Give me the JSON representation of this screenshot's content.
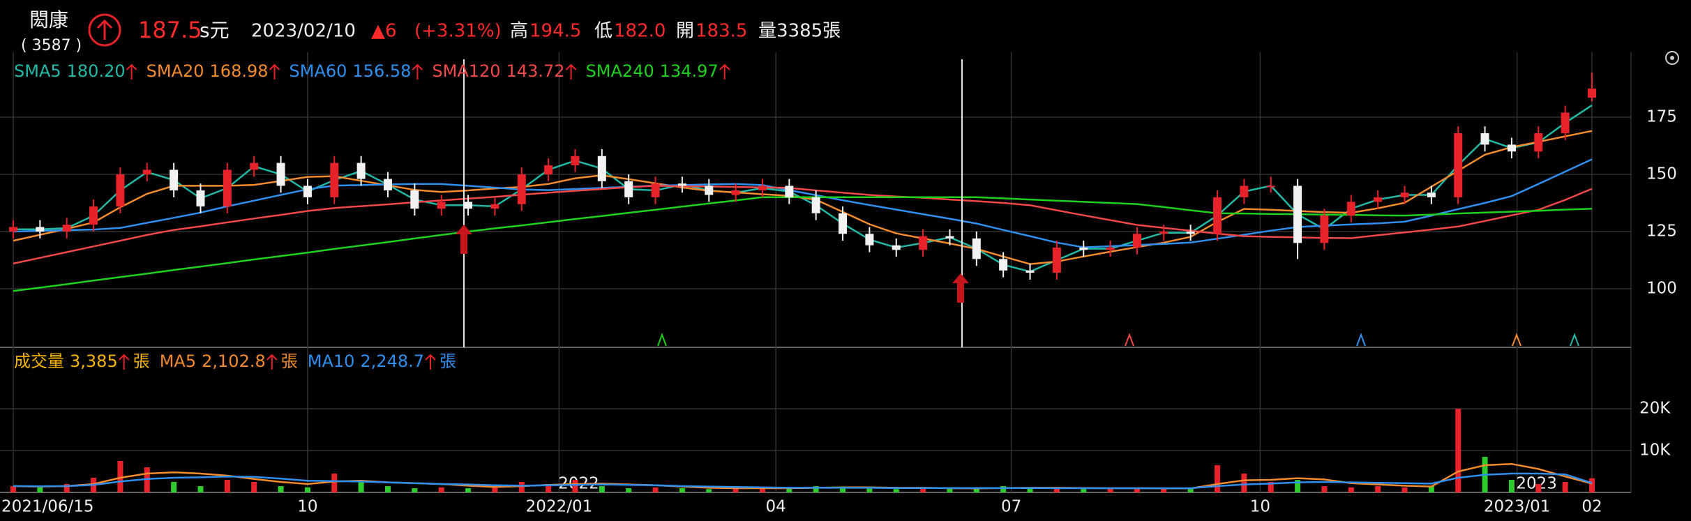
{
  "header": {
    "name": "閎康",
    "code": "( 3587 )",
    "price": "187.5",
    "currency": "s元",
    "date": "2023/02/10",
    "change": "▲6",
    "change_pct": "(+3.31%)",
    "high_label": "高",
    "high": "194.5",
    "low_label": "低",
    "low": "182.0",
    "open_label": "開",
    "open": "183.5",
    "volume": "量3385張"
  },
  "chart_data": {
    "type": "candlestick",
    "ylim": [
      74.4,
      200.3
    ],
    "yticks": [
      100,
      125,
      150,
      175
    ],
    "xticks": [
      {
        "value": 0,
        "label": "2021/06/15"
      },
      {
        "value": 11,
        "label": "10"
      },
      {
        "value": 20.4,
        "label": "2022/01"
      },
      {
        "value": 28.5,
        "label": "04"
      },
      {
        "value": 37.3,
        "label": "07"
      },
      {
        "value": 46.6,
        "label": "10"
      },
      {
        "value": 56.2,
        "label": "2023/01"
      },
      {
        "value": 59,
        "label": "02"
      }
    ],
    "year_marks": [
      {
        "value": 20.4,
        "label": "2022"
      },
      {
        "value": 56.2,
        "label": "2023"
      }
    ],
    "up_color": "#e8222a",
    "down_color": "#f2f2f2",
    "candles": {
      "open": [
        125,
        127,
        125,
        128,
        136,
        150,
        152,
        143,
        136,
        152,
        155,
        145,
        140,
        155,
        148,
        143,
        135,
        138,
        135,
        137,
        150,
        154,
        158,
        147,
        140,
        146,
        145,
        141,
        143,
        145,
        140,
        133,
        124,
        119,
        117,
        123,
        122,
        113,
        108,
        107,
        118,
        117,
        118,
        124,
        125,
        124,
        140,
        145,
        145,
        120,
        132,
        138,
        140,
        142,
        140,
        168,
        163,
        160,
        168,
        183.5
      ],
      "high": [
        130,
        130,
        131,
        139,
        153,
        155,
        155,
        146,
        155,
        158,
        158,
        148,
        158,
        158,
        151,
        146,
        141,
        141,
        140,
        153,
        157,
        161,
        161,
        150,
        149,
        149,
        148,
        146,
        148,
        148,
        143,
        136,
        127,
        122,
        126,
        126,
        125,
        116,
        111,
        121,
        121,
        121,
        127,
        128,
        128,
        143,
        148,
        149,
        148,
        135,
        141,
        143,
        145,
        145,
        171,
        171,
        166,
        171,
        180,
        194.5
      ],
      "low": [
        122,
        122,
        122,
        125,
        133,
        147,
        140,
        133,
        133,
        149,
        142,
        137,
        137,
        145,
        140,
        132,
        132,
        132,
        132,
        134,
        147,
        151,
        144,
        137,
        137,
        142,
        138,
        138,
        140,
        137,
        130,
        121,
        116,
        114,
        114,
        119,
        110,
        105,
        104,
        104,
        114,
        114,
        115,
        121,
        121,
        121,
        137,
        142,
        113,
        117,
        129,
        135,
        137,
        137,
        137,
        160,
        157,
        157,
        165,
        182
      ],
      "close": [
        127,
        125,
        128,
        136,
        150,
        152,
        143,
        136,
        152,
        155,
        145,
        140,
        155,
        148,
        143,
        135,
        138,
        135,
        137,
        150,
        154,
        158,
        147,
        140,
        146,
        145,
        141,
        143,
        145,
        140,
        133,
        124,
        119,
        117,
        123,
        122,
        113,
        108,
        107,
        118,
        117,
        118,
        124,
        125,
        124,
        140,
        145,
        145,
        120,
        132,
        138,
        140,
        142,
        140,
        168,
        163,
        160,
        168,
        177,
        187.5
      ]
    },
    "series": [
      {
        "name": "SMA5",
        "color": "#22b8a6",
        "value_label": "180.20",
        "values": [
          126,
          126,
          126.5,
          132,
          143,
          151,
          147.5,
          139.5,
          144,
          153.5,
          150,
          142.5,
          147.5,
          151.5,
          145.5,
          139,
          136.5,
          136.5,
          136,
          143.5,
          152,
          156,
          152.5,
          143.5,
          143,
          145.5,
          143,
          142,
          144,
          142.5,
          136.5,
          128.5,
          121.5,
          118,
          120,
          122.5,
          117.5,
          110.5,
          107.5,
          112.5,
          117.5,
          117.5,
          121,
          124.5,
          124.5,
          132,
          142.5,
          145,
          132.5,
          126,
          135,
          139,
          141,
          141,
          154,
          165.5,
          161.5,
          164,
          172.5,
          180.2
        ]
      },
      {
        "name": "SMA20",
        "color": "#f28a2e",
        "value_label": "168.98",
        "values": [
          121,
          123.6,
          126.2,
          129,
          135.6,
          141.5,
          145,
          145,
          145,
          145.4,
          147.1,
          148.9,
          149.2,
          147.2,
          145.2,
          143.2,
          142.3,
          143,
          143.8,
          144.5,
          145.8,
          148.3,
          149.6,
          147.9,
          146.1,
          144.3,
          142.8,
          142.1,
          141.3,
          140.6,
          138.9,
          133.6,
          128.2,
          124.2,
          122,
          119.8,
          117.4,
          114.1,
          110.8,
          111.9,
          114.1,
          116.2,
          118.2,
          120.2,
          122.7,
          129.2,
          134.9,
          134.5,
          134,
          133.5,
          133.2,
          135.2,
          137.6,
          144.6,
          151.6,
          158.6,
          161.9,
          164.2,
          166.6,
          168.98
        ]
      },
      {
        "name": "SMA60",
        "color": "#2f8fef",
        "value_label": "156.58",
        "values": [
          125,
          125.3,
          125.6,
          125.9,
          126.6,
          128.8,
          131,
          133.3,
          136,
          138.5,
          141,
          143.5,
          145.1,
          145.3,
          145.6,
          145.8,
          145.8,
          145,
          144.2,
          143.4,
          143.1,
          143.6,
          144.1,
          144.6,
          145.1,
          145.3,
          145.6,
          145.8,
          145.3,
          143.1,
          140.9,
          138.7,
          136.6,
          134.6,
          132.6,
          130.6,
          128.5,
          125.7,
          123,
          120.2,
          118.1,
          118.6,
          119.1,
          119.6,
          120.2,
          121.9,
          123.6,
          125.4,
          127,
          127.6,
          128.1,
          128.6,
          129.3,
          132,
          134.8,
          137.5,
          140.5,
          145.8,
          151.2,
          156.58
        ]
      },
      {
        "name": "SMA120",
        "color": "#f04848",
        "value_label": "143.72",
        "values": [
          111,
          113.5,
          116,
          118.5,
          121,
          123.5,
          125.7,
          127.3,
          129,
          130.7,
          132.3,
          134,
          135.3,
          136.1,
          136.9,
          137.8,
          138.6,
          139.4,
          140.2,
          141.1,
          142,
          142.8,
          143.6,
          144.4,
          145,
          144.8,
          144.7,
          144.5,
          144.3,
          144.1,
          143,
          142,
          141,
          140.3,
          139.8,
          139,
          138.3,
          137.5,
          136.5,
          134.3,
          132.1,
          130,
          127.9,
          126.6,
          125.4,
          124.1,
          123,
          122.7,
          122.5,
          122.2,
          122.1,
          123.4,
          124.6,
          125.9,
          127.2,
          129.6,
          132.1,
          134.5,
          138.8,
          143.72
        ]
      },
      {
        "name": "SMA240",
        "color": "#1fd11f",
        "value_label": "134.97",
        "values": [
          99,
          100.5,
          102,
          103.6,
          105.1,
          106.6,
          108.2,
          109.7,
          111.2,
          112.8,
          114.3,
          115.8,
          117.4,
          118.9,
          120.4,
          122,
          123.5,
          125,
          126.4,
          127.7,
          129.1,
          130.5,
          131.8,
          133.2,
          134.5,
          135.9,
          137.3,
          138.6,
          140,
          140,
          140,
          140,
          140,
          140,
          140,
          140,
          140,
          139.5,
          139,
          138.5,
          138,
          137.5,
          137,
          135.7,
          134.3,
          133,
          132.9,
          132.7,
          132.6,
          132.4,
          132.3,
          132.1,
          132,
          132.4,
          132.9,
          133.3,
          133.7,
          134.1,
          134.6,
          134.97
        ]
      }
    ],
    "volume": {
      "name": "成交量",
      "unit": "張",
      "color": "#f5b400",
      "value_label": "3,385",
      "ylim": [
        0,
        34700
      ],
      "yticks": [
        {
          "value": 10000,
          "label": "10K"
        },
        {
          "value": 20000,
          "label": "20K"
        }
      ],
      "values": [
        1500,
        1200,
        2000,
        3500,
        7500,
        6000,
        2500,
        1500,
        3000,
        2500,
        1500,
        1200,
        4500,
        2500,
        1500,
        1000,
        1200,
        1000,
        1500,
        2500,
        2000,
        3000,
        1500,
        1000,
        1200,
        1000,
        800,
        1000,
        1200,
        1000,
        1500,
        1200,
        900,
        800,
        1000,
        900,
        1000,
        1500,
        1200,
        1000,
        800,
        900,
        1000,
        900,
        1000,
        6500,
        4500,
        2500,
        3000,
        1500,
        1200,
        1500,
        1200,
        1500,
        20000,
        8500,
        3000,
        2000,
        2500,
        3385
      ],
      "ma": [
        {
          "name": "MA5",
          "color": "#f28a2e",
          "value_label": "2,102.8",
          "values": [
            1500,
            1400,
            1500,
            2000,
            3500,
            4500,
            4800,
            4500,
            4000,
            3200,
            2500,
            2000,
            2600,
            2800,
            2400,
            2200,
            2000,
            1600,
            1300,
            1500,
            1800,
            2000,
            2100,
            1900,
            1700,
            1400,
            1100,
            1000,
            1000,
            1000,
            1100,
            1200,
            1200,
            1100,
            1100,
            1000,
            950,
            1050,
            1100,
            1100,
            1050,
            1000,
            1000,
            950,
            950,
            2000,
            2900,
            3000,
            3400,
            3100,
            2200,
            1900,
            1600,
            1400,
            5000,
            6500,
            6800,
            5600,
            3800,
            2102.8
          ]
        },
        {
          "name": "MA10",
          "color": "#2f8fef",
          "value_label": "2,248.7",
          "values": [
            1500,
            1450,
            1500,
            1800,
            2600,
            3200,
            3500,
            3600,
            3800,
            3700,
            3300,
            2800,
            2700,
            2600,
            2400,
            2200,
            2000,
            1900,
            1700,
            1600,
            1700,
            1800,
            1900,
            1800,
            1700,
            1500,
            1400,
            1300,
            1200,
            1100,
            1100,
            1100,
            1100,
            1050,
            1050,
            1050,
            1050,
            1050,
            1050,
            1000,
            1000,
            1000,
            1000,
            1000,
            1000,
            1500,
            1900,
            2100,
            2400,
            2500,
            2400,
            2300,
            2200,
            2100,
            3500,
            4200,
            4500,
            4500,
            4300,
            2248.7
          ]
        }
      ]
    }
  }
}
